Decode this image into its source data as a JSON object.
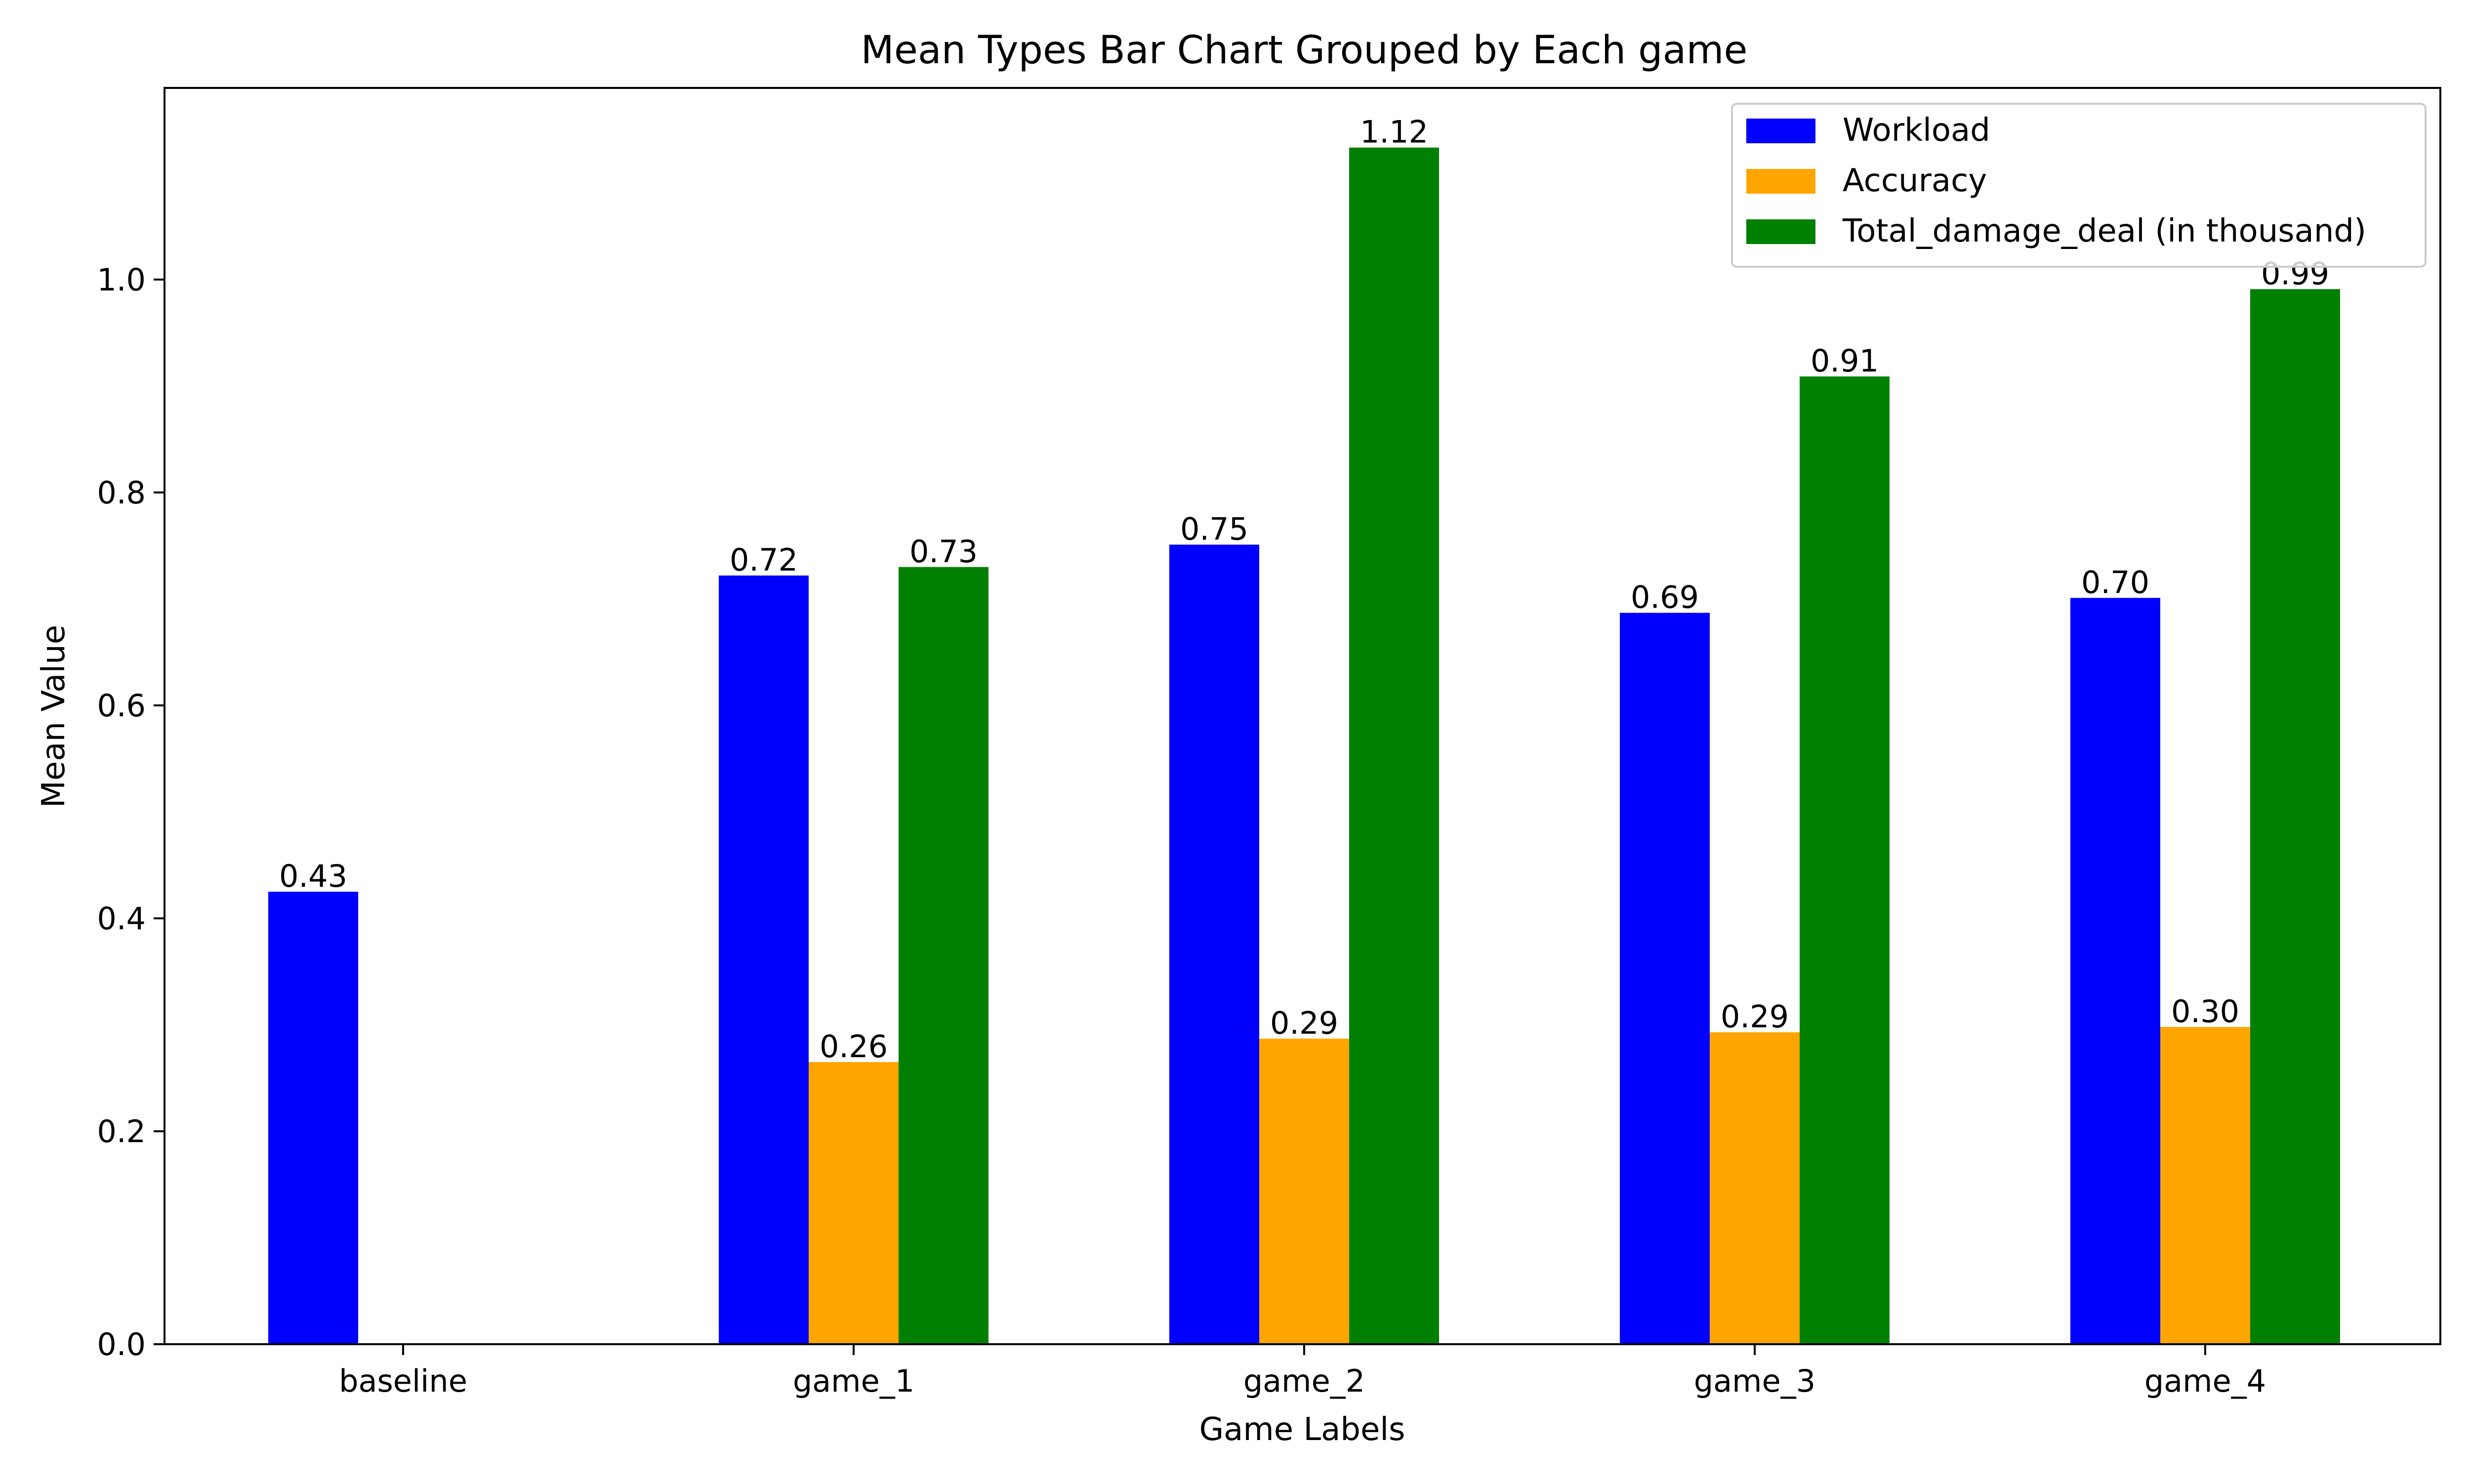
{
  "chart_data": {
    "type": "bar",
    "title": "Mean Types Bar Chart Grouped by Each game",
    "xlabel": "Game Labels",
    "ylabel": "Mean Value",
    "categories": [
      "baseline",
      "game_1",
      "game_2",
      "game_3",
      "game_4"
    ],
    "ylim": [
      0,
      1.18
    ],
    "yticks": [
      0.0,
      0.2,
      0.4,
      0.6,
      0.8,
      1.0
    ],
    "ytick_labels": [
      "0.0",
      "0.2",
      "0.4",
      "0.6",
      "0.8",
      "1.0"
    ],
    "grid": false,
    "legend_position": "top-right",
    "series": [
      {
        "name": "Workload",
        "color": "#0000ff",
        "values": [
          0.425,
          0.722,
          0.751,
          0.687,
          0.701
        ],
        "labels": [
          "0.43",
          "0.72",
          "0.75",
          "0.69",
          "0.70"
        ]
      },
      {
        "name": "Accuracy",
        "color": "#ffa500",
        "values": [
          null,
          0.265,
          0.287,
          0.293,
          0.298
        ],
        "labels": [
          null,
          "0.26",
          "0.29",
          "0.29",
          "0.30"
        ]
      },
      {
        "name": "Total_damage_deal (in thousand)",
        "color": "#008000",
        "values": [
          null,
          0.73,
          1.124,
          0.909,
          0.991
        ],
        "labels": [
          null,
          "0.73",
          "1.12",
          "0.91",
          "0.99"
        ]
      }
    ]
  }
}
